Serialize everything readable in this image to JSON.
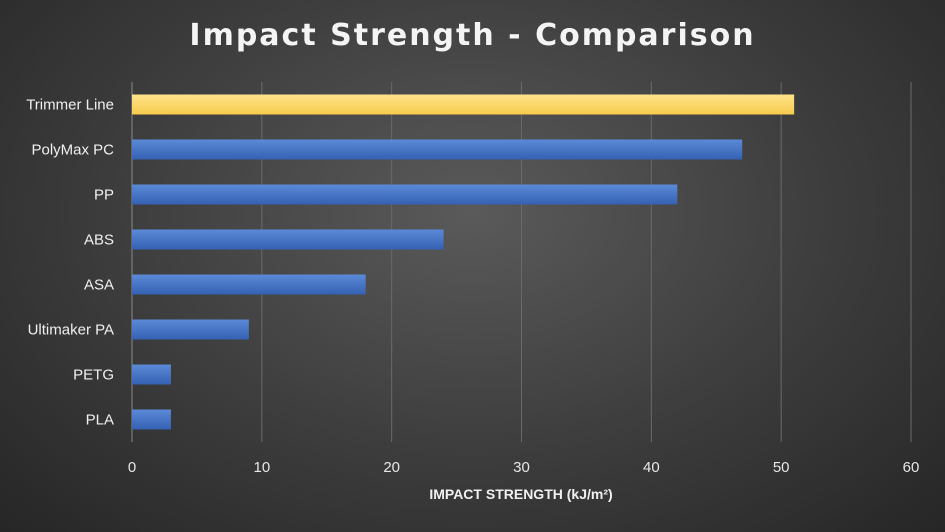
{
  "chart_data": {
    "type": "bar",
    "orientation": "horizontal",
    "title": "Impact Strength - Comparison",
    "xlabel": "IMPACT STRENGTH (kJ/m²)",
    "ylabel": "",
    "categories": [
      "Trimmer Line",
      "PolyMax PC",
      "PP",
      "ABS",
      "ASA",
      "Ultimaker PA",
      "PETG",
      "PLA"
    ],
    "values": [
      51,
      47,
      42,
      24,
      18,
      9,
      3,
      3
    ],
    "xlim": [
      0,
      60
    ],
    "xticks": [
      0,
      10,
      20,
      30,
      40,
      50,
      60
    ],
    "grid": "vertical",
    "legend": "none",
    "colors": {
      "highlight": "#ffd966",
      "default": "#4472c4",
      "grid": "#6a6a6a"
    },
    "highlight_index": 0
  }
}
